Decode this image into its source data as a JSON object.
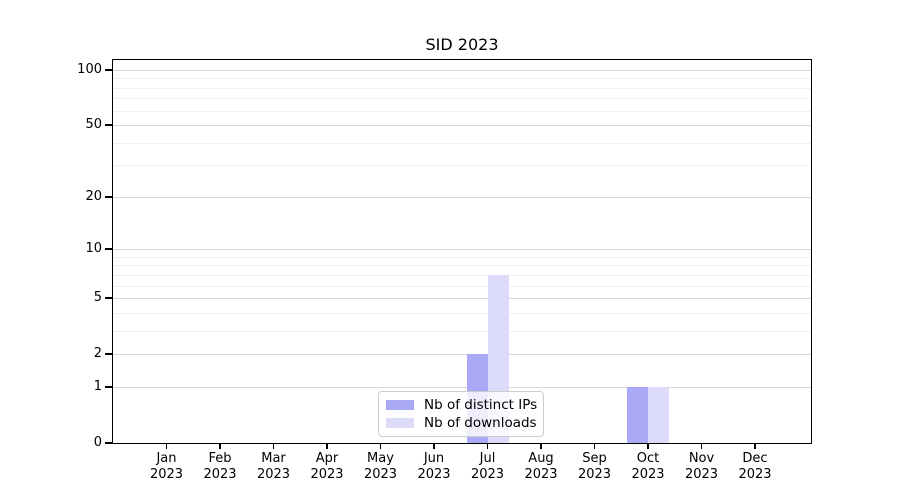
{
  "chart_data": {
    "type": "bar",
    "title": "SID 2023",
    "categories": [
      "Jan",
      "Feb",
      "Mar",
      "Apr",
      "May",
      "Jun",
      "Jul",
      "Aug",
      "Sep",
      "Oct",
      "Nov",
      "Dec"
    ],
    "year_label": "2023",
    "series": [
      {
        "name": "Nb of distinct IPs",
        "color": "#a9a9f5",
        "values": [
          0,
          0,
          0,
          0,
          0,
          0,
          2,
          0,
          0,
          1,
          0,
          0
        ]
      },
      {
        "name": "Nb of downloads",
        "color": "#dcdcfa",
        "values": [
          0,
          0,
          0,
          0,
          0,
          0,
          7,
          0,
          0,
          1,
          0,
          0
        ]
      }
    ],
    "xlabel": "",
    "ylabel": "",
    "yscale": "log1p",
    "ylim": [
      0,
      113
    ],
    "y_major_ticks": [
      0,
      1,
      2,
      5,
      10,
      20,
      50,
      100
    ],
    "y_minor_gridlines": [
      3,
      4,
      6,
      7,
      8,
      9,
      30,
      40,
      60,
      70,
      80,
      90
    ],
    "grid": true,
    "grid_major_color": "#d9d9d9",
    "grid_minor_color": "#efefef",
    "spine_color": "#000000",
    "legend_position": "lower center",
    "legend_entries": [
      "Nb of distinct IPs",
      "Nb of downloads"
    ]
  }
}
